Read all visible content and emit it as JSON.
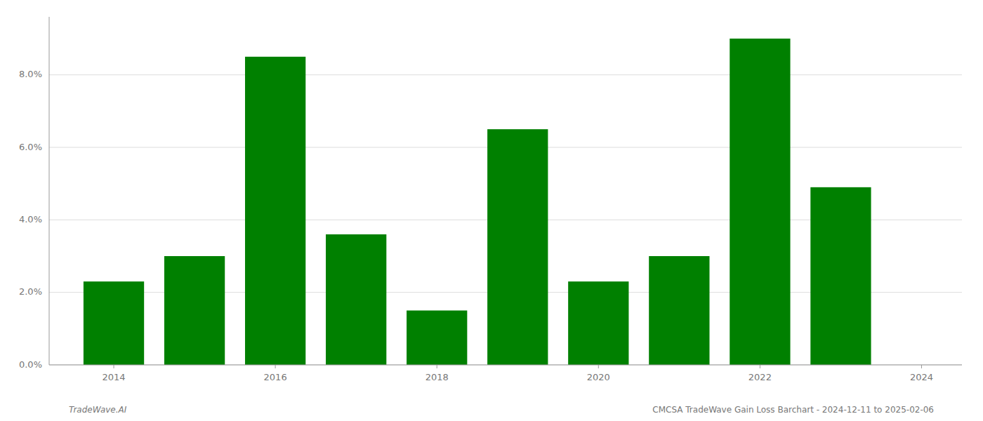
{
  "chart_data": {
    "type": "bar",
    "x": [
      2014,
      2015,
      2016,
      2017,
      2018,
      2019,
      2020,
      2021,
      2022,
      2023
    ],
    "values": [
      0.023,
      0.03,
      0.085,
      0.036,
      0.015,
      0.065,
      0.023,
      0.03,
      0.09,
      0.049
    ],
    "color": "#008000",
    "xlim": [
      2013.2,
      2024.5
    ],
    "xticks": [
      2014,
      2016,
      2018,
      2020,
      2022,
      2024
    ],
    "ylim": [
      0,
      0.096
    ],
    "yticks": [
      {
        "value": 0.0,
        "label": "0.0%"
      },
      {
        "value": 0.02,
        "label": "2.0%"
      },
      {
        "value": 0.04,
        "label": "4.0%"
      },
      {
        "value": 0.06,
        "label": "6.0%"
      },
      {
        "value": 0.08,
        "label": "8.0%"
      }
    ],
    "grid": true,
    "annotations": [
      "TradeWave.AI",
      "CMCSA TradeWave Gain Loss Barchart - 2024-12-11 to 2025-02-06"
    ]
  }
}
